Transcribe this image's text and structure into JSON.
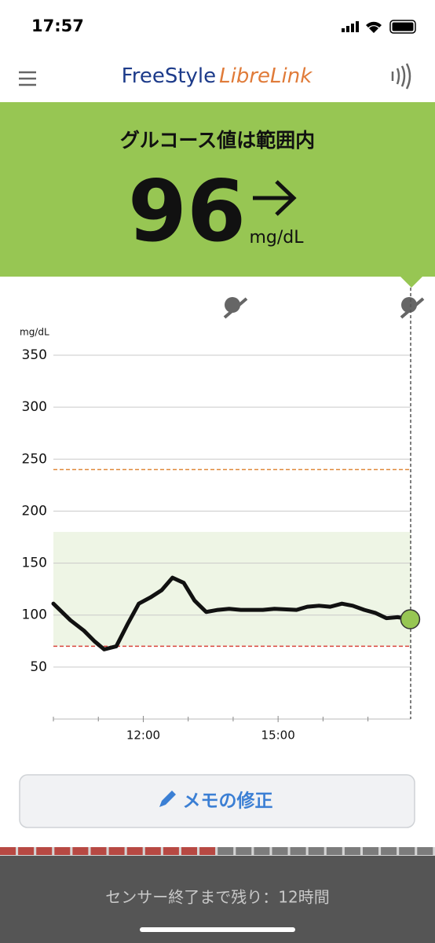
{
  "status_bar": {
    "time": "17:57"
  },
  "header": {
    "brand_first": "FreeStyle",
    "brand_second": "LibreLink"
  },
  "banner": {
    "status": "グルコース値は範囲内",
    "value": 96,
    "unit": "mg/dL"
  },
  "chart_data": {
    "type": "line",
    "y_label": "mg/dL",
    "color": "#111111",
    "x": [
      10.0,
      10.38,
      10.68,
      10.91,
      11.13,
      11.4,
      11.66,
      11.9,
      12.16,
      12.41,
      12.65,
      12.9,
      13.14,
      13.4,
      13.66,
      13.91,
      14.17,
      14.66,
      14.92,
      15.41,
      15.65,
      15.91,
      16.16,
      16.42,
      16.66,
      16.92,
      17.17,
      17.41,
      17.66,
      17.94
    ],
    "values": [
      111,
      95,
      85,
      75,
      67,
      70,
      92,
      111,
      117,
      124,
      136,
      131,
      114,
      103,
      105,
      106,
      105,
      105,
      106,
      105,
      108,
      109,
      108,
      111,
      109,
      105,
      102,
      97,
      98,
      96
    ],
    "xlim": [
      10,
      17.95
    ],
    "ylim": [
      0,
      350
    ],
    "xticks": [
      {
        "value": 12,
        "label": "12:00"
      },
      {
        "value": 15,
        "label": "15:00"
      }
    ],
    "xminorticks": [
      10,
      11,
      13,
      14,
      16,
      17
    ],
    "yticks": [
      50,
      100,
      150,
      200,
      250,
      300,
      350
    ],
    "target_range": [
      70,
      180
    ],
    "high_alert": 240,
    "low_alert": 70,
    "grid": true
  },
  "button": {
    "label": "メモの修正"
  },
  "footer": {
    "text": "センサー終了まで残り：12時間"
  }
}
